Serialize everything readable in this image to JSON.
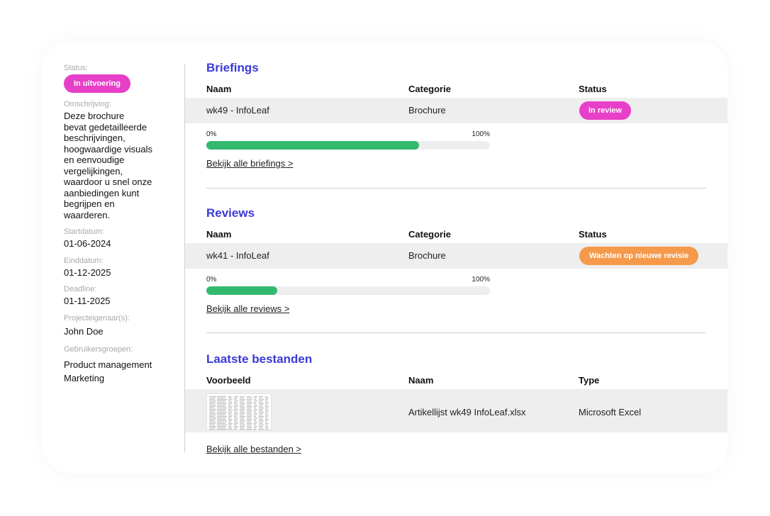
{
  "sidebar": {
    "status_label": "Status:",
    "status_value": "In uitvoering",
    "description_label": "Omschrijving:",
    "description_lines": [
      "Deze brochure",
      "bevat gedetailleerde",
      "beschrijvingen,",
      "hoogwaardige visuals",
      "en eenvoudige",
      "vergelijkingen,",
      "waardoor u snel onze",
      "aanbiedingen kunt",
      "begrijpen en",
      "waarderen."
    ],
    "start_label": "Startdatum:",
    "start_value": "01-06-2024",
    "end_label": "Einddatum:",
    "end_value": "01-12-2025",
    "deadline_label": "Deadline:",
    "deadline_value": "01-11-2025",
    "owner_label": "Projecteigenaar(s):",
    "owner_value": "John Doe",
    "groups_label": "Gebruikersgroepen:",
    "groups": [
      "Product management",
      "Marketing"
    ]
  },
  "briefings": {
    "title": "Briefings",
    "headers": [
      "Naam",
      "Categorie",
      "Status"
    ],
    "row": {
      "name": "wk49 - InfoLeaf",
      "category": "Brochure",
      "status": "In review"
    },
    "progress_min": "0%",
    "progress_max": "100%",
    "progress_value": 0.75,
    "link": "Bekijk alle briefings >"
  },
  "reviews": {
    "title": "Reviews",
    "headers": [
      "Naam",
      "Categorie",
      "Status"
    ],
    "row": {
      "name": "wk41 - InfoLeaf",
      "category": "Brochure",
      "status": "Wachten op nieuwe revisie"
    },
    "progress_min": "0%",
    "progress_max": "100%",
    "progress_value": 0.25,
    "link": "Bekijk alle reviews >"
  },
  "files": {
    "title": "Laatste bestanden",
    "headers": [
      "Voorbeeld",
      "Naam",
      "Type"
    ],
    "row": {
      "name": "Artikellijst wk49 InfoLeaf.xlsx",
      "type": "Microsoft Excel"
    },
    "link": "Bekijk alle bestanden >"
  },
  "colors": {
    "accent": "#3a3ad6",
    "pink": "#e83fc8",
    "orange": "#f59a4a",
    "progress": "#32b96e"
  }
}
